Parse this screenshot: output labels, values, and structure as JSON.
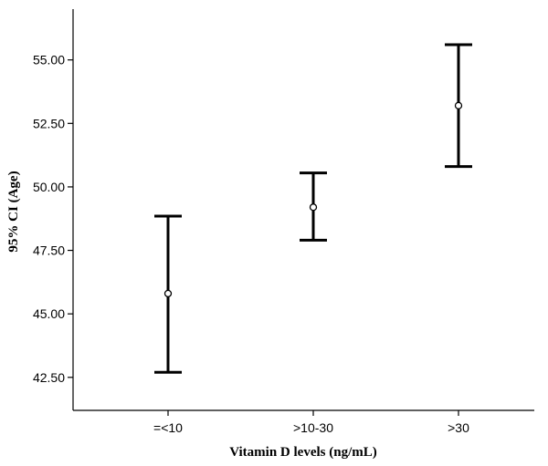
{
  "chart_data": {
    "type": "errorbar",
    "xlabel": "Vitamin D levels (ng/mL)",
    "ylabel": "95% CI (Age)",
    "categories": [
      "=<10",
      ">10-30",
      ">30"
    ],
    "series": [
      {
        "mean": [
          45.8,
          49.2,
          53.2
        ],
        "lower": [
          42.7,
          47.9,
          50.8
        ],
        "upper": [
          48.85,
          50.55,
          55.6
        ]
      }
    ],
    "ylim": [
      41.2,
      57.0
    ],
    "yticks": [
      42.5,
      45.0,
      47.5,
      50.0,
      52.5,
      55.0
    ],
    "ytick_labels": [
      "42.50",
      "45.00",
      "47.50",
      "50.00",
      "52.50",
      "55.00"
    ],
    "grid": false,
    "colors": {
      "marks": "#000000",
      "axis": "#000000"
    }
  }
}
